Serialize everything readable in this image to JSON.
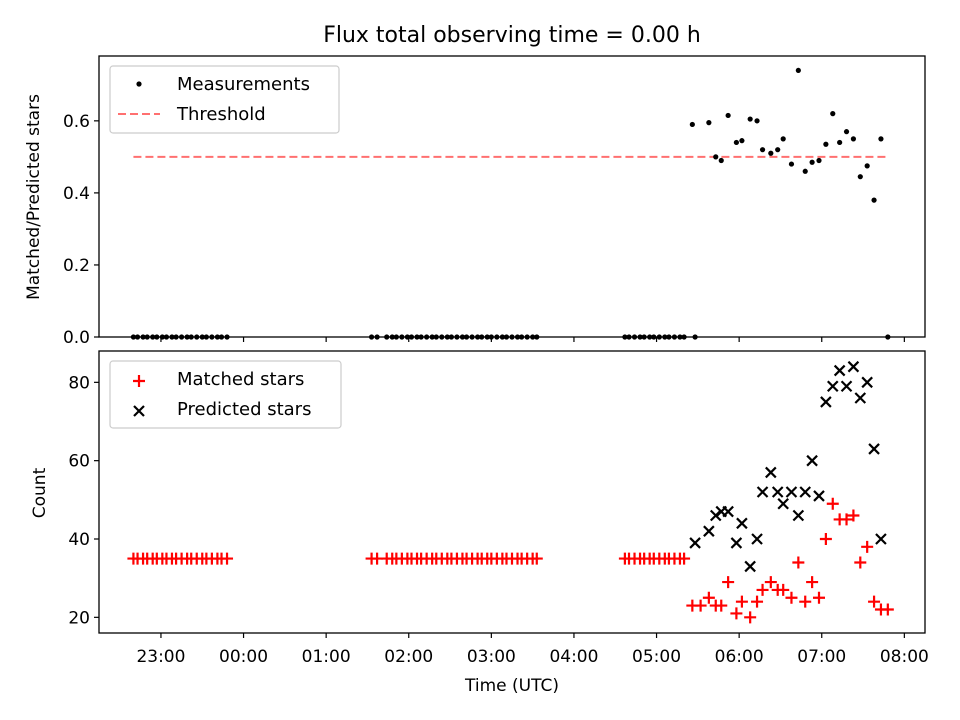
{
  "figure": {
    "title": "Flux total observing time = 0.00 h"
  },
  "chart_data": [
    {
      "type": "scatter",
      "ylabel": "Matched/Predicted stars",
      "ylim": [
        0,
        0.78
      ],
      "yticks": [
        0.0,
        0.2,
        0.4,
        0.6
      ],
      "ytick_labels": [
        "0.0",
        "0.2",
        "0.4",
        "0.6"
      ],
      "grid": false,
      "legend_position": "top-left",
      "legend": [
        "Measurements",
        "Threshold"
      ],
      "threshold": {
        "name": "Threshold",
        "y": 0.5,
        "x_start": "22:40",
        "x_end": "07:48",
        "color": "#ff7070"
      },
      "series": [
        {
          "name": "Measurements",
          "color": "#000000",
          "x": [
            "22:40",
            "22:43",
            "22:47",
            "22:50",
            "22:54",
            "22:57",
            "23:01",
            "23:04",
            "23:08",
            "23:11",
            "23:15",
            "23:19",
            "23:22",
            "23:26",
            "23:30",
            "23:33",
            "23:37",
            "23:41",
            "23:44",
            "23:48",
            "01:33",
            "01:37",
            "01:44",
            "01:48",
            "01:51",
            "01:55",
            "01:59",
            "02:02",
            "02:06",
            "02:09",
            "02:13",
            "02:17",
            "02:20",
            "02:24",
            "02:28",
            "02:31",
            "02:35",
            "02:39",
            "02:42",
            "02:46",
            "02:50",
            "02:53",
            "02:57",
            "03:00",
            "03:04",
            "03:08",
            "03:11",
            "03:15",
            "03:19",
            "03:22",
            "03:26",
            "03:30",
            "03:33",
            "04:37",
            "04:40",
            "04:44",
            "04:48",
            "04:51",
            "04:55",
            "04:58",
            "05:02",
            "05:06",
            "05:09",
            "05:13",
            "05:17",
            "05:20",
            "05:26",
            "05:28",
            "05:38",
            "05:43",
            "05:47",
            "05:52",
            "05:58",
            "06:02",
            "06:08",
            "06:13",
            "06:17",
            "06:23",
            "06:28",
            "06:32",
            "06:38",
            "06:43",
            "06:48",
            "06:53",
            "06:58",
            "07:03",
            "07:08",
            "07:13",
            "07:18",
            "07:23",
            "07:28",
            "07:33",
            "07:38",
            "07:43",
            "07:48"
          ],
          "y": [
            0,
            0,
            0,
            0,
            0,
            0,
            0,
            0,
            0,
            0,
            0,
            0,
            0,
            0,
            0,
            0,
            0,
            0,
            0,
            0,
            0,
            0,
            0,
            0,
            0,
            0,
            0,
            0,
            0,
            0,
            0,
            0,
            0,
            0,
            0,
            0,
            0,
            0,
            0,
            0,
            0,
            0,
            0,
            0,
            0,
            0,
            0,
            0,
            0,
            0,
            0,
            0,
            0,
            0,
            0,
            0,
            0,
            0,
            0,
            0,
            0,
            0,
            0,
            0,
            0,
            0,
            0.59,
            0,
            0.595,
            0.5,
            0.49,
            0.615,
            0.54,
            0.545,
            0.605,
            0.6,
            0.52,
            0.51,
            0.52,
            0.55,
            0.48,
            0.74,
            0.46,
            0.485,
            0.49,
            0.535,
            0.62,
            0.54,
            0.57,
            0.55,
            0.445,
            0.475,
            0.38,
            0.55,
            0
          ]
        }
      ]
    },
    {
      "type": "scatter",
      "xlabel": "Time (UTC)",
      "ylabel": "Count",
      "ylim": [
        16,
        88
      ],
      "yticks": [
        20,
        40,
        60,
        80
      ],
      "ytick_labels": [
        "20",
        "40",
        "60",
        "80"
      ],
      "xlim": [
        "22:15",
        "08:15"
      ],
      "xticks": [
        "23:00",
        "00:00",
        "01:00",
        "02:00",
        "03:00",
        "04:00",
        "05:00",
        "06:00",
        "07:00",
        "08:00"
      ],
      "xtick_labels": [
        "23:00",
        "00:00",
        "01:00",
        "02:00",
        "03:00",
        "04:00",
        "05:00",
        "06:00",
        "07:00",
        "08:00"
      ],
      "grid": false,
      "legend_position": "top-left",
      "legend": [
        "Matched stars",
        "Predicted stars"
      ],
      "series": [
        {
          "name": "Matched stars",
          "marker": "+",
          "color": "#ff0000",
          "x": [
            "22:40",
            "22:43",
            "22:47",
            "22:50",
            "22:54",
            "22:57",
            "23:01",
            "23:04",
            "23:08",
            "23:11",
            "23:15",
            "23:19",
            "23:22",
            "23:26",
            "23:30",
            "23:33",
            "23:37",
            "23:41",
            "23:44",
            "23:48",
            "01:33",
            "01:37",
            "01:44",
            "01:48",
            "01:51",
            "01:55",
            "01:59",
            "02:02",
            "02:06",
            "02:09",
            "02:13",
            "02:17",
            "02:20",
            "02:24",
            "02:28",
            "02:31",
            "02:35",
            "02:39",
            "02:42",
            "02:46",
            "02:50",
            "02:53",
            "02:57",
            "03:00",
            "03:04",
            "03:08",
            "03:11",
            "03:15",
            "03:19",
            "03:22",
            "03:26",
            "03:30",
            "03:33",
            "04:37",
            "04:40",
            "04:44",
            "04:48",
            "04:51",
            "04:55",
            "04:58",
            "05:02",
            "05:06",
            "05:09",
            "05:13",
            "05:17",
            "05:20",
            "05:26",
            "05:32",
            "05:38",
            "05:43",
            "05:47",
            "05:52",
            "05:58",
            "06:02",
            "06:08",
            "06:13",
            "06:17",
            "06:23",
            "06:28",
            "06:32",
            "06:38",
            "06:43",
            "06:48",
            "06:53",
            "06:58",
            "07:03",
            "07:08",
            "07:13",
            "07:18",
            "07:23",
            "07:28",
            "07:33",
            "07:38",
            "07:43",
            "07:48"
          ],
          "y": [
            35,
            35,
            35,
            35,
            35,
            35,
            35,
            35,
            35,
            35,
            35,
            35,
            35,
            35,
            35,
            35,
            35,
            35,
            35,
            35,
            35,
            35,
            35,
            35,
            35,
            35,
            35,
            35,
            35,
            35,
            35,
            35,
            35,
            35,
            35,
            35,
            35,
            35,
            35,
            35,
            35,
            35,
            35,
            35,
            35,
            35,
            35,
            35,
            35,
            35,
            35,
            35,
            35,
            35,
            35,
            35,
            35,
            35,
            35,
            35,
            35,
            35,
            35,
            35,
            35,
            35,
            23,
            23,
            25,
            23,
            23,
            29,
            21,
            24,
            20,
            24,
            27,
            29,
            27,
            27,
            25,
            34,
            24,
            29,
            25,
            40,
            49,
            45,
            45,
            46,
            34,
            38,
            24,
            22,
            22
          ]
        },
        {
          "name": "Predicted stars",
          "marker": "x",
          "color": "#000000",
          "x": [
            "05:28",
            "05:38",
            "05:43",
            "05:47",
            "05:52",
            "05:58",
            "06:02",
            "06:08",
            "06:13",
            "06:17",
            "06:23",
            "06:28",
            "06:32",
            "06:38",
            "06:43",
            "06:48",
            "06:53",
            "06:58",
            "07:03",
            "07:08",
            "07:13",
            "07:18",
            "07:23",
            "07:28",
            "07:33",
            "07:38",
            "07:43"
          ],
          "y": [
            39,
            42,
            46,
            47,
            47,
            39,
            44,
            33,
            40,
            52,
            57,
            52,
            49,
            52,
            46,
            52,
            60,
            51,
            75,
            79,
            83,
            79,
            84,
            76,
            80,
            63,
            40
          ]
        }
      ]
    }
  ]
}
